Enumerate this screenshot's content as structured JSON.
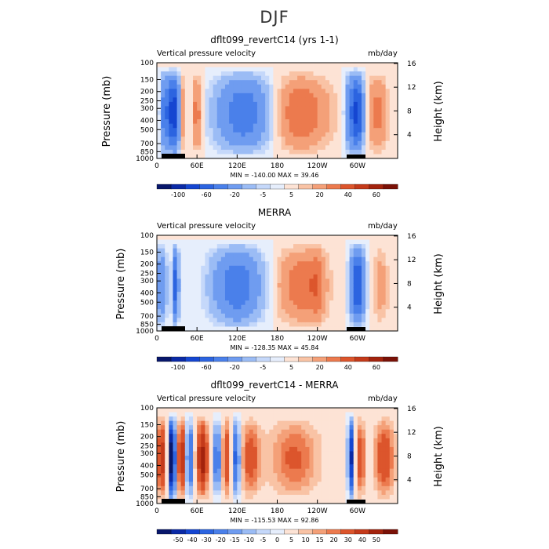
{
  "figure": {
    "title": "DJF"
  },
  "chart_data": [
    {
      "type": "heatmap",
      "title": "dflt099_revertC14 (yrs 1-1)",
      "left_label": "Vertical pressure velocity",
      "units": "mb/day",
      "ylabel": "Pressure (mb)",
      "ylabel_right": "Height (km)",
      "x_ticks": [
        "0",
        "60E",
        "120E",
        "180",
        "120W",
        "60W"
      ],
      "y_ticks": [
        "100",
        "150",
        "200",
        "250",
        "300",
        "400",
        "500",
        "700",
        "850",
        "1000"
      ],
      "height_ticks": [
        "16",
        "12",
        "8",
        "4"
      ],
      "min_max": "MIN = -140.00   MAX =  39.46",
      "colorbar": {
        "labels": [
          "-100",
          "-60",
          "-20",
          "-5",
          "5",
          "20",
          "40",
          "60"
        ],
        "levels": [
          -120,
          -100,
          -80,
          -60,
          -40,
          -20,
          -10,
          -5,
          0,
          5,
          10,
          20,
          30,
          40,
          50,
          60
        ],
        "colors": [
          "#08176b",
          "#0b2aa6",
          "#1546d1",
          "#2c64e0",
          "#4a80ea",
          "#6f9cf0",
          "#9bbcf5",
          "#c5d8fa",
          "#e6eefc",
          "#fde3d5",
          "#f9c3a5",
          "#f4a078",
          "#ec7a4e",
          "#dc552c",
          "#c43a1a",
          "#a3230d",
          "#7a1107"
        ]
      }
    },
    {
      "type": "heatmap",
      "title": "MERRA",
      "left_label": "Vertical pressure velocity",
      "units": "mb/day",
      "ylabel": "Pressure (mb)",
      "ylabel_right": "Height (km)",
      "x_ticks": [
        "0",
        "60E",
        "120E",
        "180",
        "120W",
        "60W"
      ],
      "y_ticks": [
        "100",
        "150",
        "200",
        "250",
        "300",
        "400",
        "500",
        "700",
        "850",
        "1000"
      ],
      "height_ticks": [
        "16",
        "12",
        "8",
        "4"
      ],
      "min_max": "MIN = -128.35   MAX =  45.84",
      "colorbar": {
        "labels": [
          "-100",
          "-60",
          "-20",
          "-5",
          "5",
          "20",
          "40",
          "60"
        ],
        "levels": [
          -120,
          -100,
          -80,
          -60,
          -40,
          -20,
          -10,
          -5,
          0,
          5,
          10,
          20,
          30,
          40,
          50,
          60
        ],
        "colors": [
          "#08176b",
          "#0b2aa6",
          "#1546d1",
          "#2c64e0",
          "#4a80ea",
          "#6f9cf0",
          "#9bbcf5",
          "#c5d8fa",
          "#e6eefc",
          "#fde3d5",
          "#f9c3a5",
          "#f4a078",
          "#ec7a4e",
          "#dc552c",
          "#c43a1a",
          "#a3230d",
          "#7a1107"
        ]
      }
    },
    {
      "type": "heatmap",
      "title": "dflt099_revertC14 - MERRA",
      "left_label": "Vertical pressure velocity",
      "units": "mb/day",
      "ylabel": "Pressure (mb)",
      "ylabel_right": "Height (km)",
      "x_ticks": [
        "0",
        "60E",
        "120E",
        "180",
        "120W",
        "60W"
      ],
      "y_ticks": [
        "100",
        "150",
        "200",
        "250",
        "300",
        "400",
        "500",
        "700",
        "850",
        "1000"
      ],
      "height_ticks": [
        "16",
        "12",
        "8",
        "4"
      ],
      "min_max": "MIN = -115.53   MAX =  92.86",
      "colorbar": {
        "labels": [
          "-50",
          "-40",
          "-30",
          "-20",
          "-15",
          "-10",
          "-5",
          "0",
          "5",
          "10",
          "15",
          "20",
          "30",
          "40",
          "50"
        ],
        "levels": [
          -60,
          -50,
          -40,
          -30,
          -20,
          -15,
          -10,
          -5,
          0,
          5,
          10,
          15,
          20,
          30,
          40,
          50,
          60
        ],
        "colors": [
          "#08176b",
          "#0b2aa6",
          "#1546d1",
          "#2c64e0",
          "#4a80ea",
          "#6f9cf0",
          "#9bbcf5",
          "#c5d8fa",
          "#e6eefc",
          "#fde3d5",
          "#f9c3a5",
          "#f4a078",
          "#ec7a4e",
          "#dc552c",
          "#c43a1a",
          "#a3230d",
          "#7a1107"
        ]
      }
    }
  ]
}
